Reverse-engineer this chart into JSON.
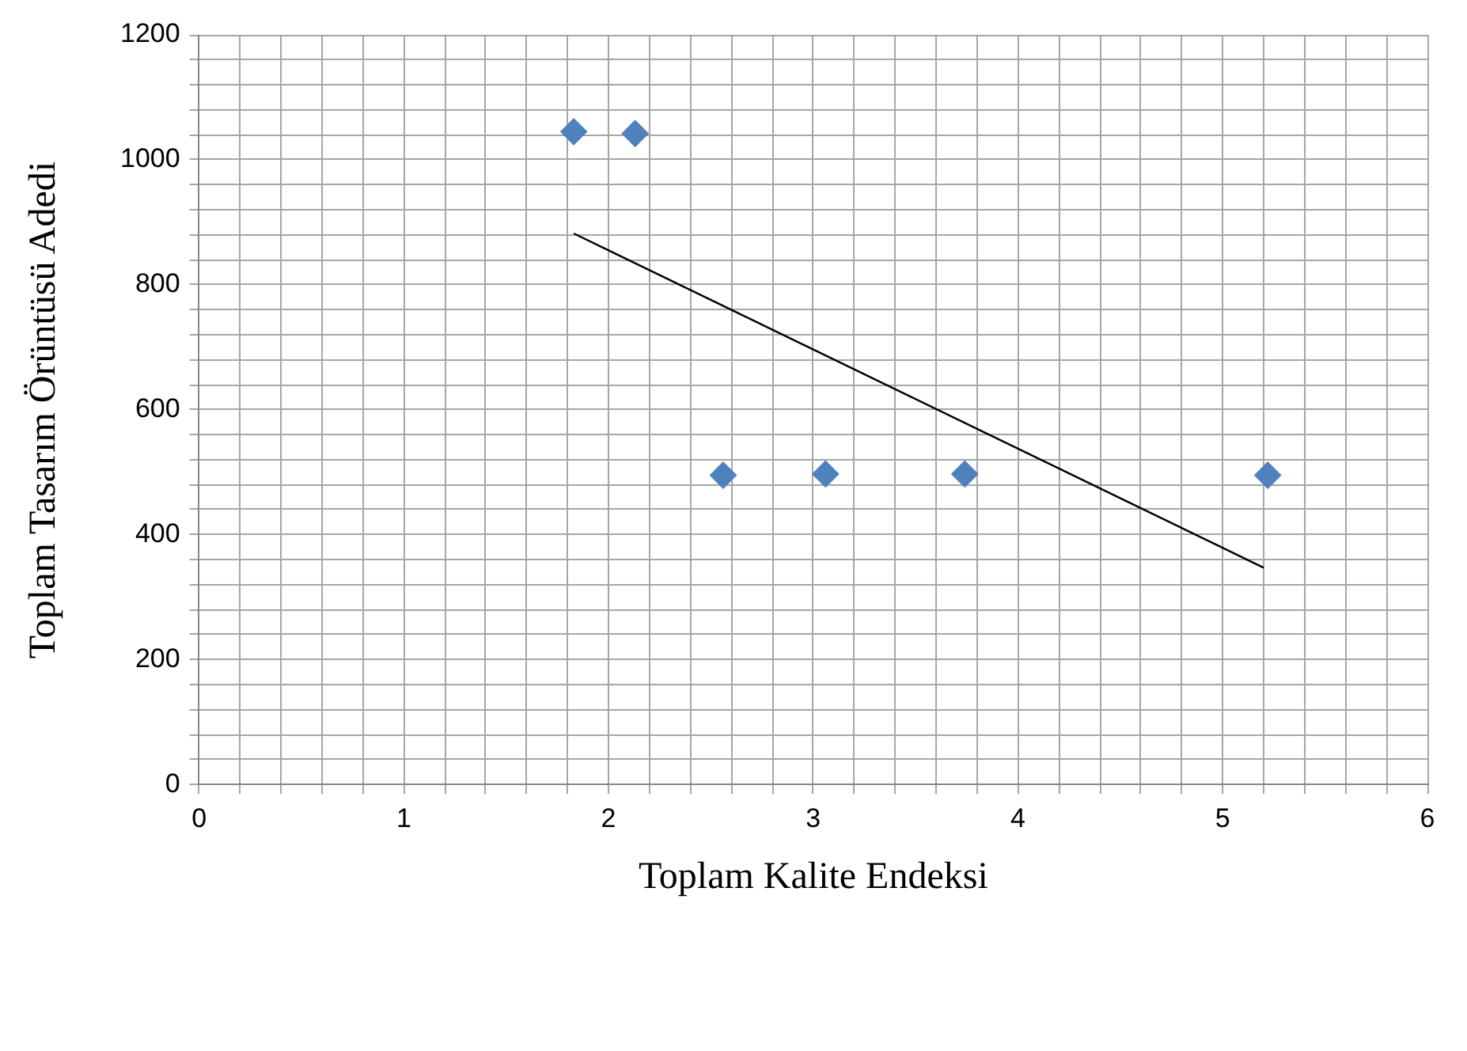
{
  "chart_data": {
    "type": "scatter",
    "xlabel": "Toplam Kalite Endeksi",
    "ylabel": "Toplam Tasarım Örüntüsü Adedi",
    "xlim": [
      0,
      6
    ],
    "ylim": [
      0,
      1200
    ],
    "xticks": [
      0,
      {
        "value": 0.2,
        "label": null
      },
      {
        "value": 0.4,
        "label": null
      },
      {
        "value": 0.6,
        "label": null
      },
      {
        "value": 0.8,
        "label": null
      },
      1,
      {
        "value": 1.2,
        "label": null
      },
      {
        "value": 1.4,
        "label": null
      },
      {
        "value": 1.6,
        "label": null
      },
      {
        "value": 1.8,
        "label": null
      },
      2,
      {
        "value": 2.2,
        "label": null
      },
      {
        "value": 2.4,
        "label": null
      },
      {
        "value": 2.6,
        "label": null
      },
      {
        "value": 2.8,
        "label": null
      },
      3,
      {
        "value": 3.2,
        "label": null
      },
      {
        "value": 3.4,
        "label": null
      },
      {
        "value": 3.6,
        "label": null
      },
      {
        "value": 3.8,
        "label": null
      },
      4,
      {
        "value": 4.2,
        "label": null
      },
      {
        "value": 4.4,
        "label": null
      },
      {
        "value": 4.6,
        "label": null
      },
      {
        "value": 4.8,
        "label": null
      },
      5,
      {
        "value": 5.2,
        "label": null
      },
      {
        "value": 5.4,
        "label": null
      },
      {
        "value": 5.6,
        "label": null
      },
      {
        "value": 5.8,
        "label": null
      },
      6
    ],
    "yticks": [
      0,
      {
        "value": 40,
        "label": null
      },
      {
        "value": 80,
        "label": null
      },
      {
        "value": 120,
        "label": null
      },
      {
        "value": 160,
        "label": null
      },
      200,
      {
        "value": 240,
        "label": null
      },
      {
        "value": 280,
        "label": null
      },
      {
        "value": 320,
        "label": null
      },
      {
        "value": 360,
        "label": null
      },
      400,
      {
        "value": 440,
        "label": null
      },
      {
        "value": 480,
        "label": null
      },
      {
        "value": 520,
        "label": null
      },
      {
        "value": 560,
        "label": null
      },
      600,
      {
        "value": 640,
        "label": null
      },
      {
        "value": 680,
        "label": null
      },
      {
        "value": 720,
        "label": null
      },
      {
        "value": 760,
        "label": null
      },
      800,
      {
        "value": 840,
        "label": null
      },
      {
        "value": 880,
        "label": null
      },
      {
        "value": 920,
        "label": null
      },
      {
        "value": 960,
        "label": null
      },
      1000,
      {
        "value": 1040,
        "label": null
      },
      {
        "value": 1080,
        "label": null
      },
      {
        "value": 1120,
        "label": null
      },
      {
        "value": 1160,
        "label": null
      },
      1200
    ],
    "grid": true,
    "legend": false,
    "marker": "diamond",
    "series": [
      {
        "type": "scatter",
        "color": "#4f81bd",
        "x": [
          1.83,
          2.13,
          2.56,
          3.06,
          3.74,
          5.22
        ],
        "values": [
          1045,
          1042,
          495,
          497,
          497,
          495
        ]
      },
      {
        "type": "line",
        "color": "#000000",
        "marker": "none",
        "x": [
          1.83,
          5.2
        ],
        "values": [
          882,
          347
        ]
      }
    ]
  }
}
